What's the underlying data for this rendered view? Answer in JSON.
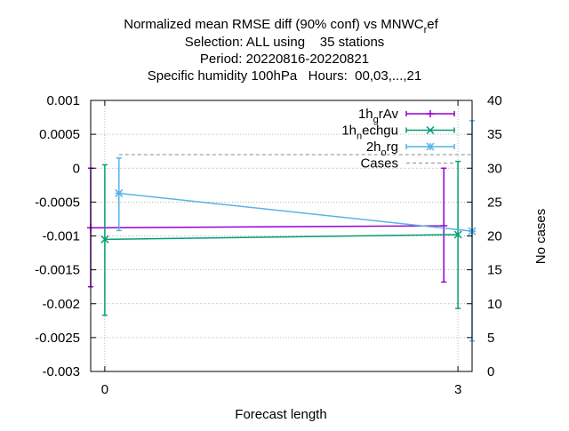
{
  "chart_data": {
    "type": "line",
    "title": {
      "line1_prefix": "Normalized mean RMSE diff (90% conf) vs MNWC",
      "line1_sub": "r",
      "line1_suffix": "ef",
      "line2": "Selection: ALL using    35 stations",
      "line3": "Period: 20220816-20220821",
      "line4": "Specific humidity 100hPa   Hours:  00,03,...,21"
    },
    "xlabel": "Forecast length",
    "ylabel_right": "No cases",
    "x_ticks": [
      0,
      3
    ],
    "x_tick_labels": [
      "0",
      "3"
    ],
    "xlim": [
      -0.12,
      3.12
    ],
    "ylim": [
      -0.003,
      0.001
    ],
    "y_ticks": [
      0.001,
      0.0005,
      0,
      -0.0005,
      -0.001,
      -0.0015,
      -0.002,
      -0.0025,
      -0.003
    ],
    "y_tick_labels": [
      "0.001",
      "0.0005",
      "0",
      "-0.0005",
      "-0.001",
      "-0.0015",
      "-0.002",
      "-0.0025",
      "-0.003"
    ],
    "y2lim": [
      0,
      40
    ],
    "y2_ticks": [
      0,
      5,
      10,
      15,
      20,
      25,
      30,
      35,
      40
    ],
    "y2_tick_labels": [
      "0",
      "5",
      "10",
      "15",
      "20",
      "25",
      "30",
      "35",
      "40"
    ],
    "grid": true,
    "legend_position": "top-right",
    "series": [
      {
        "name_main": "1h",
        "name_sub": "g",
        "name_rest": "rAv",
        "color": "#9400d3",
        "marker": "plus",
        "x": [
          -0.12,
          2.88
        ],
        "y": [
          -0.00088,
          -0.00085
        ],
        "err_low": [
          -0.00175,
          -0.00168
        ],
        "err_high": [
          0.0,
          0.0
        ]
      },
      {
        "name_main": "1h",
        "name_sub": "n",
        "name_rest": "echgu",
        "color": "#009e73",
        "marker": "cross",
        "x": [
          0.0,
          3.0
        ],
        "y": [
          -0.00105,
          -0.00098
        ],
        "err_low": [
          -0.00217,
          -0.00207
        ],
        "err_high": [
          5e-05,
          0.0001
        ]
      },
      {
        "name_main": "2h",
        "name_sub": "o",
        "name_rest": "rg",
        "color": "#56b4e9",
        "marker": "star",
        "x": [
          0.12,
          3.12
        ],
        "y": [
          -0.00037,
          -0.00093
        ],
        "err_low": [
          -0.00092,
          -0.00255
        ],
        "err_high": [
          0.00015,
          0.0007
        ]
      }
    ],
    "cases": {
      "name": "Cases",
      "color": "#a0a0a0",
      "x": [
        0.12,
        3.12
      ],
      "y": [
        32,
        32
      ]
    }
  }
}
